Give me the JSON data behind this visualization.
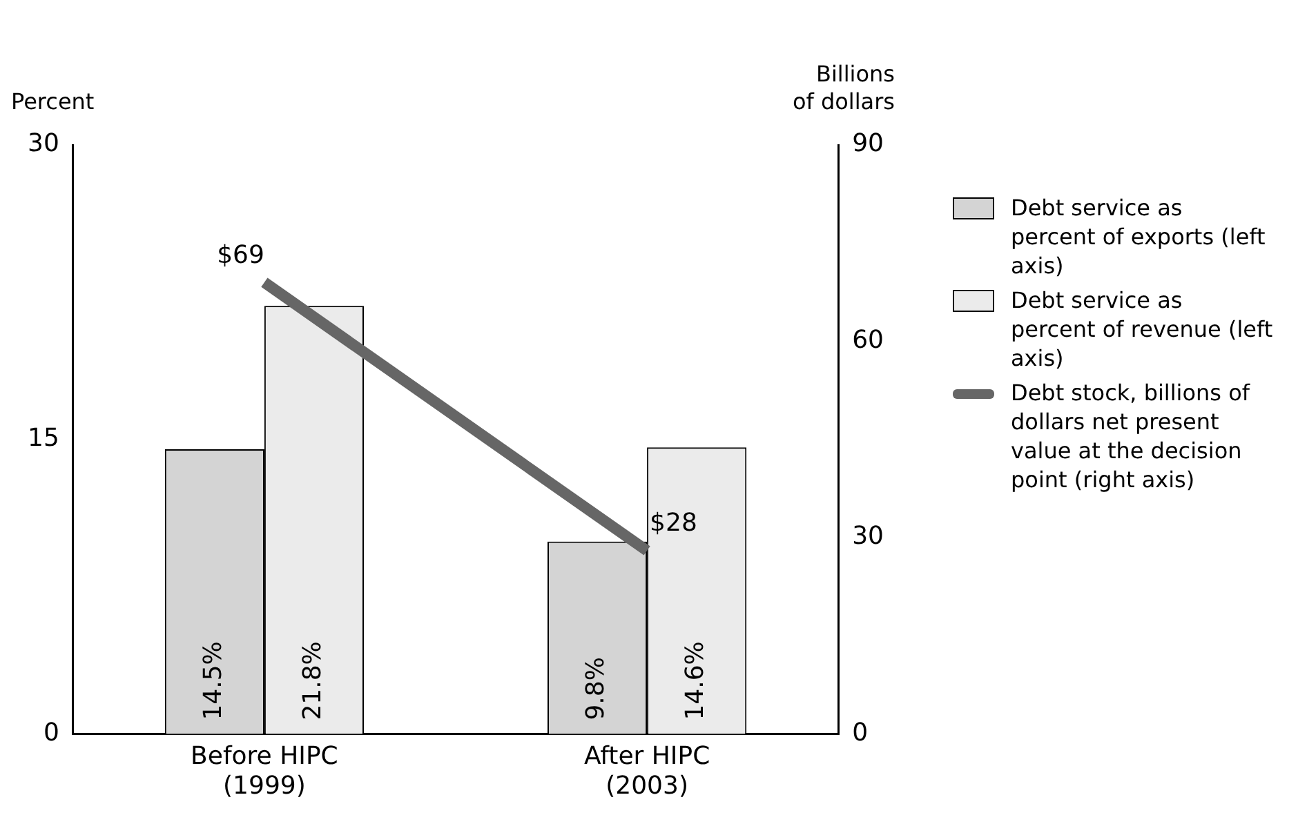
{
  "chart_data": {
    "type": "bar",
    "categories": [
      "Before HIPC\n(1999)",
      "After HIPC\n(2003)"
    ],
    "ylabel": "Percent",
    "y2label": "Billions\nof dollars",
    "ylim": [
      0,
      30
    ],
    "yticks": [
      0,
      15,
      30
    ],
    "y2lim": [
      0,
      90
    ],
    "y2ticks": [
      0,
      30,
      60,
      90
    ],
    "grid": false,
    "legend": "right",
    "series": [
      {
        "name": "Debt service as percent of exports (left axis)",
        "color": "#d4d4d4",
        "values": [
          14.5,
          9.8
        ],
        "value_labels": [
          "14.5%",
          "9.8%"
        ]
      },
      {
        "name": "Debt service as percent of revenue (left axis)",
        "color": "#ebebeb",
        "values": [
          21.8,
          14.6
        ],
        "value_labels": [
          "21.8%",
          "14.6%"
        ]
      },
      {
        "name": "Debt stock, billions of dollars net present value at the decision point (right axis)",
        "type": "line",
        "axis": "y2",
        "color": "#666666",
        "marker": "none",
        "values": [
          69,
          28
        ],
        "value_labels": [
          "$69",
          "$28"
        ]
      }
    ]
  }
}
